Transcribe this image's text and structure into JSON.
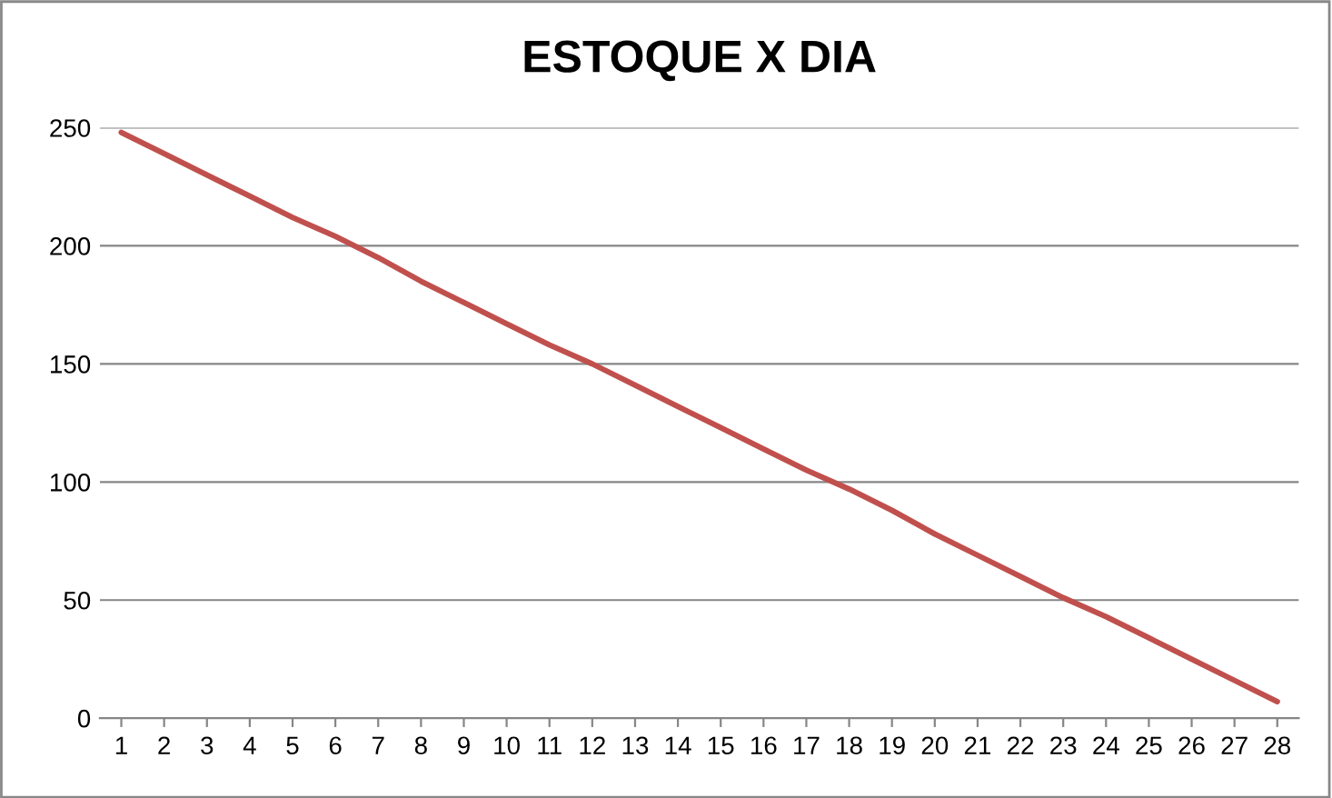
{
  "chart_data": {
    "type": "line",
    "title": "ESTOQUE X DIA",
    "categories": [
      "1",
      "2",
      "3",
      "4",
      "5",
      "6",
      "7",
      "8",
      "9",
      "10",
      "11",
      "12",
      "13",
      "14",
      "15",
      "16",
      "17",
      "18",
      "19",
      "20",
      "21",
      "22",
      "23",
      "24",
      "25",
      "26",
      "27",
      "28"
    ],
    "series": [
      {
        "color": "#c0504d",
        "values": [
          248,
          239,
          230,
          221,
          212,
          204,
          195,
          185,
          176,
          167,
          158,
          150,
          141,
          132,
          123,
          114,
          105,
          97,
          88,
          78,
          69,
          60,
          51,
          43,
          34,
          25,
          16,
          7
        ]
      }
    ],
    "ylim": [
      0,
      250
    ],
    "yticks": [
      0,
      50,
      100,
      150,
      200,
      250
    ],
    "grid": "y",
    "marker": "none",
    "line_style": "solid"
  }
}
